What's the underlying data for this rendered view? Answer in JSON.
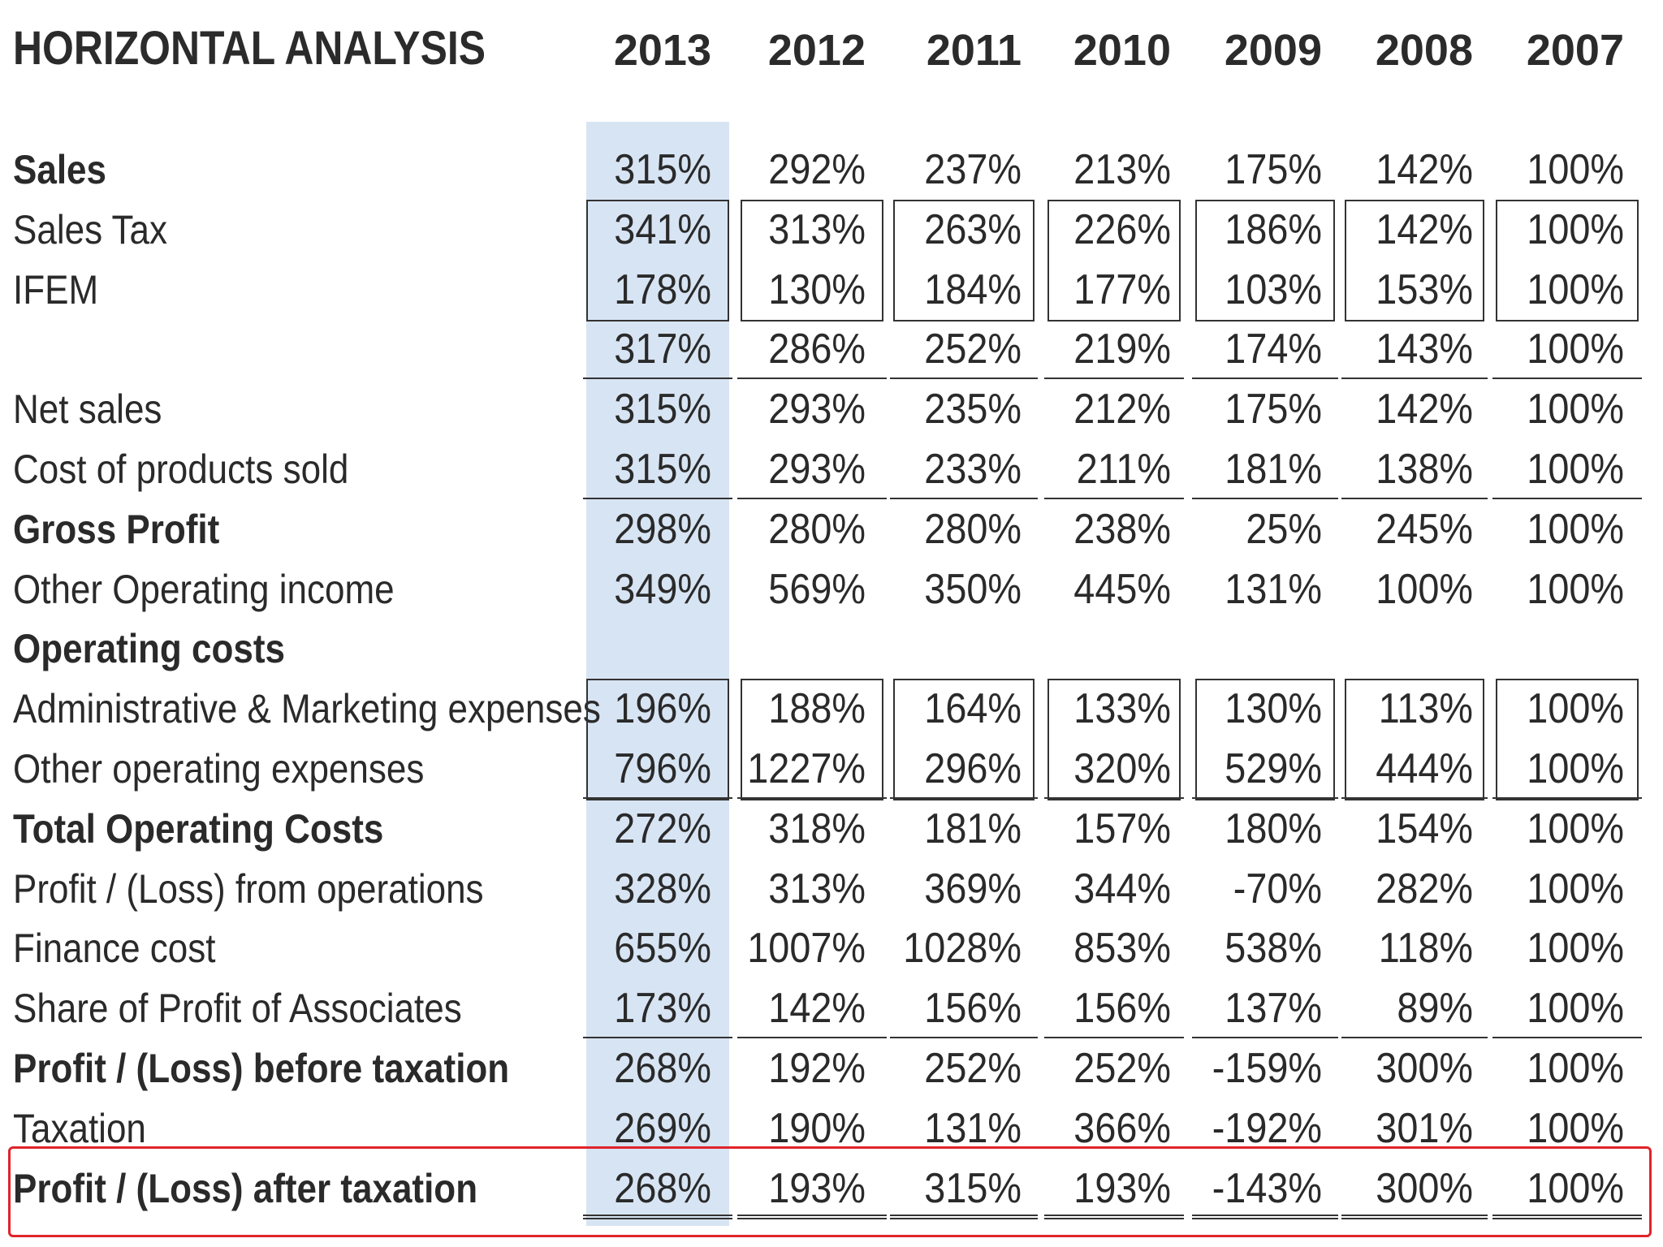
{
  "title": "HORIZONTAL ANALYSIS",
  "years": [
    "2013",
    "2012",
    "2011",
    "2010",
    "2009",
    "2008",
    "2007"
  ],
  "rows": [
    {
      "label": "Sales",
      "bold": true,
      "values": [
        "315%",
        "292%",
        "237%",
        "213%",
        "175%",
        "142%",
        "100%"
      ]
    },
    {
      "label": "Sales Tax",
      "bold": false,
      "values": [
        "341%",
        "313%",
        "263%",
        "226%",
        "186%",
        "142%",
        "100%"
      ]
    },
    {
      "label": "IFEM",
      "bold": false,
      "values": [
        "178%",
        "130%",
        "184%",
        "177%",
        "103%",
        "153%",
        "100%"
      ]
    },
    {
      "label": "",
      "bold": false,
      "values": [
        "317%",
        "286%",
        "252%",
        "219%",
        "174%",
        "143%",
        "100%"
      ]
    },
    {
      "label": "Net sales",
      "bold": false,
      "values": [
        "315%",
        "293%",
        "235%",
        "212%",
        "175%",
        "142%",
        "100%"
      ]
    },
    {
      "label": "Cost of products sold",
      "bold": false,
      "values": [
        "315%",
        "293%",
        "233%",
        "211%",
        "181%",
        "138%",
        "100%"
      ]
    },
    {
      "label": "Gross Profit",
      "bold": true,
      "values": [
        "298%",
        "280%",
        "280%",
        "238%",
        "25%",
        "245%",
        "100%"
      ]
    },
    {
      "label": "Other Operating income",
      "bold": false,
      "values": [
        "349%",
        "569%",
        "350%",
        "445%",
        "131%",
        "100%",
        "100%"
      ]
    },
    {
      "label": "Operating costs",
      "bold": true,
      "values": [
        "",
        "",
        "",
        "",
        "",
        "",
        ""
      ]
    },
    {
      "label": "Administrative & Marketing expenses",
      "bold": false,
      "values": [
        "196%",
        "188%",
        "164%",
        "133%",
        "130%",
        "113%",
        "100%"
      ]
    },
    {
      "label": "Other operating expenses",
      "bold": false,
      "values": [
        "796%",
        "1227%",
        "296%",
        "320%",
        "529%",
        "444%",
        "100%"
      ]
    },
    {
      "label": "Total Operating Costs",
      "bold": true,
      "values": [
        "272%",
        "318%",
        "181%",
        "157%",
        "180%",
        "154%",
        "100%"
      ]
    },
    {
      "label": "Profit / (Loss) from operations",
      "bold": false,
      "values": [
        "328%",
        "313%",
        "369%",
        "344%",
        "-70%",
        "282%",
        "100%"
      ]
    },
    {
      "label": "Finance cost",
      "bold": false,
      "values": [
        "655%",
        "1007%",
        "1028%",
        "853%",
        "538%",
        "118%",
        "100%"
      ]
    },
    {
      "label": "Share of Profit of Associates",
      "bold": false,
      "values": [
        "173%",
        "142%",
        "156%",
        "156%",
        "137%",
        "89%",
        "100%"
      ]
    },
    {
      "label": "Profit / (Loss) before taxation",
      "bold": true,
      "values": [
        "268%",
        "192%",
        "252%",
        "252%",
        "-159%",
        "300%",
        "100%"
      ]
    },
    {
      "label": "Taxation",
      "bold": false,
      "values": [
        "269%",
        "190%",
        "131%",
        "366%",
        "-192%",
        "301%",
        "100%"
      ]
    },
    {
      "label": "Profit / (Loss) after taxation",
      "bold": true,
      "values": [
        "268%",
        "193%",
        "315%",
        "193%",
        "-143%",
        "300%",
        "100%"
      ]
    }
  ],
  "colors": {
    "highlight": "#d7e4f3",
    "frame": "#e0242a",
    "text": "#2a2a2a"
  }
}
